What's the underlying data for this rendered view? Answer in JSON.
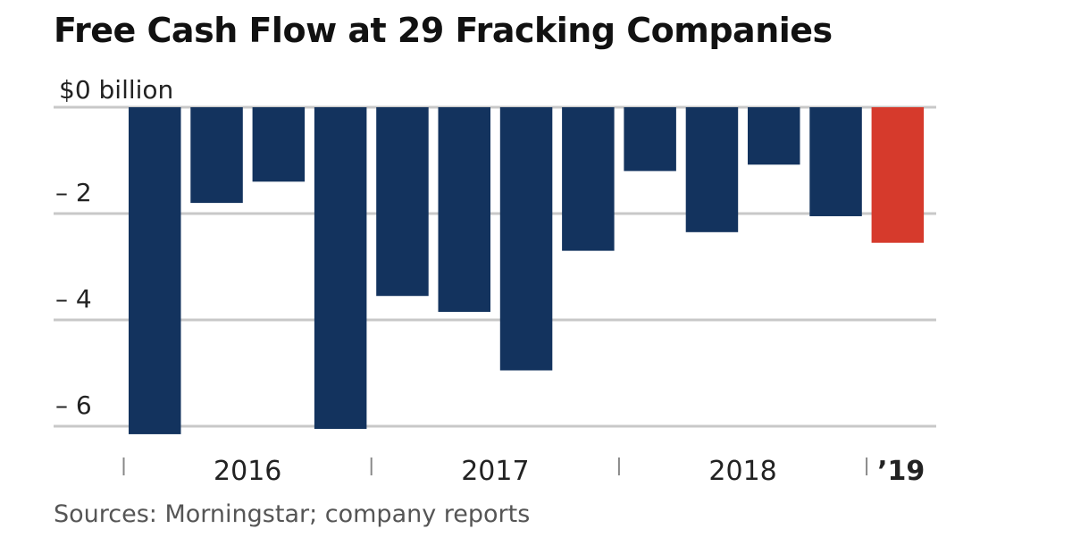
{
  "chart_data": {
    "type": "bar",
    "title": "Free Cash Flow at 29 Fracking Companies",
    "y_unit_label": "$0 billion",
    "y_ticks": [
      {
        "value": 0,
        "label": "$0 billion"
      },
      {
        "value": -2,
        "label": "– 2"
      },
      {
        "value": -4,
        "label": "– 4"
      },
      {
        "value": -6,
        "label": "– 6"
      }
    ],
    "ylim": [
      -6.3,
      0
    ],
    "grid": true,
    "year_labels": [
      {
        "label": "2016",
        "quarters": 4
      },
      {
        "label": "2017",
        "quarters": 4
      },
      {
        "label": "2018",
        "quarters": 4
      },
      {
        "label": "’19",
        "quarters": 1
      }
    ],
    "values": [
      -6.15,
      -1.8,
      -1.4,
      -6.05,
      -3.55,
      -3.85,
      -4.95,
      -2.7,
      -1.2,
      -2.35,
      -1.08,
      -2.05,
      -2.55
    ],
    "colors": {
      "bar": "#13335e",
      "highlight": "#d63a2c",
      "grid": "#c8c8c8",
      "text": "#222222"
    },
    "highlight_index": 12,
    "source": "Sources: Morningstar; company reports"
  }
}
